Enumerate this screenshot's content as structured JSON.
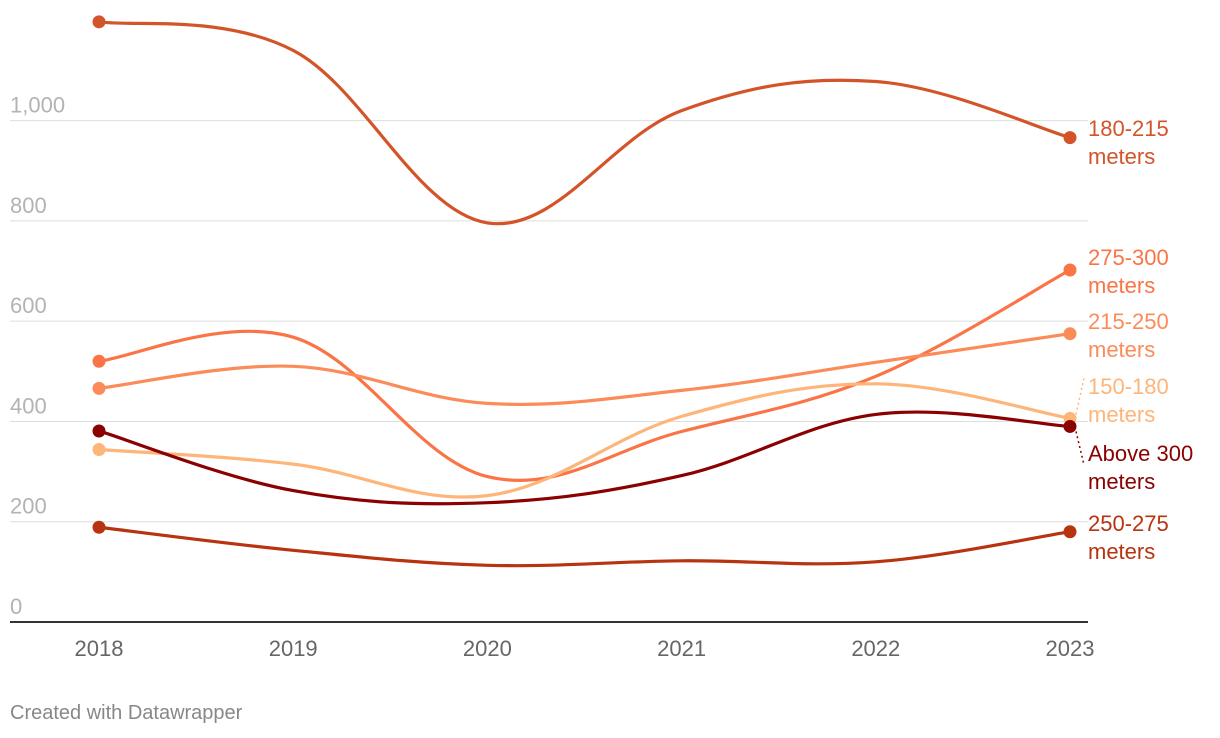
{
  "chart_data": {
    "type": "line",
    "title": "",
    "xlabel": "",
    "ylabel": "",
    "x": [
      "2018",
      "2019",
      "2020",
      "2021",
      "2022",
      "2023"
    ],
    "ylim": [
      0,
      1200
    ],
    "yticks": [
      0,
      200,
      400,
      600,
      800,
      1000
    ],
    "ytick_labels": [
      "0",
      "200",
      "400",
      "600",
      "800",
      "1,000"
    ],
    "grid": "horizontal",
    "legend": "direct labels at line ends, right",
    "series": [
      {
        "name": "180-215 meters",
        "label_lines": [
          "180-215",
          "meters"
        ],
        "color": "#d4542a",
        "values": [
          1197,
          1140,
          796,
          1020,
          1078,
          966
        ]
      },
      {
        "name": "275-300 meters",
        "label_lines": [
          "275-300",
          "meters"
        ],
        "color": "#fa7445",
        "values": [
          520,
          568,
          290,
          380,
          490,
          702
        ]
      },
      {
        "name": "215-250 meters",
        "label_lines": [
          "215-250",
          "meters"
        ],
        "color": "#fb8c59",
        "values": [
          466,
          510,
          436,
          462,
          518,
          575
        ]
      },
      {
        "name": "150-180 meters",
        "label_lines": [
          "150-180",
          "meters"
        ],
        "color": "#fdb57a",
        "values": [
          344,
          315,
          252,
          410,
          475,
          406
        ]
      },
      {
        "name": "Above 300 meters",
        "label_lines": [
          "Above 300",
          "meters"
        ],
        "color": "#8b0000",
        "values": [
          381,
          262,
          238,
          292,
          414,
          390
        ]
      },
      {
        "name": "250-275 meters",
        "label_lines": [
          "250-275",
          "meters"
        ],
        "color": "#b83310",
        "values": [
          189,
          143,
          113,
          122,
          120,
          180
        ]
      }
    ]
  },
  "footer": {
    "credit": "Created with Datawrapper"
  }
}
